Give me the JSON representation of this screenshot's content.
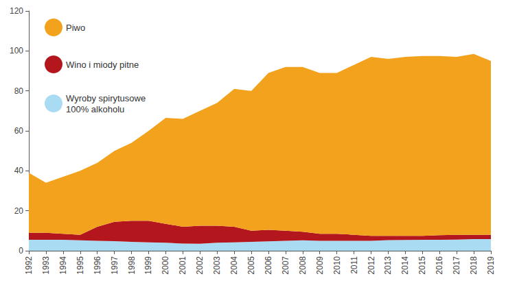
{
  "chart_data": {
    "type": "area",
    "stacked": true,
    "grid": false,
    "legend": "top-left",
    "categories": [
      "1992",
      "1993",
      "1994",
      "1995",
      "1996",
      "1997",
      "1998",
      "1999",
      "2000",
      "2001",
      "2002",
      "2003",
      "2004",
      "2005",
      "2006",
      "2007",
      "2008",
      "2009",
      "2010",
      "2011",
      "2012",
      "2013",
      "2014",
      "2015",
      "2016",
      "2017",
      "2018",
      "2019"
    ],
    "ylim": [
      0,
      120
    ],
    "yticks": [
      0,
      20,
      40,
      60,
      80,
      100,
      120
    ],
    "series": [
      {
        "name": "Piwo",
        "color": "#f2a21c",
        "values": [
          30,
          25,
          28.5,
          32,
          32,
          35.5,
          39,
          45,
          53,
          54,
          57.5,
          61.5,
          69,
          70,
          78.5,
          82,
          82.5,
          80.5,
          80.5,
          85,
          89.5,
          88.5,
          89.5,
          90,
          89.7,
          89,
          90.5,
          87
        ]
      },
      {
        "name": "Wino i miody pitne",
        "color": "#b3161c",
        "values": [
          3.5,
          3.5,
          3,
          2.8,
          7,
          9.7,
          10.5,
          10.8,
          9.5,
          8.4,
          9,
          8.5,
          7.8,
          5.5,
          5.8,
          5,
          4.3,
          3.5,
          3.5,
          3,
          2.5,
          2.2,
          2.1,
          2,
          2.3,
          2.4,
          2.2,
          2.2
        ]
      },
      {
        "name": "Wyroby spirytusowe\n100% alkoholu",
        "color": "#a9dcf2",
        "values": [
          5.5,
          5.5,
          5.5,
          5.2,
          5,
          4.8,
          4.5,
          4.2,
          4,
          3.6,
          3.5,
          4,
          4.2,
          4.5,
          4.7,
          5,
          5.2,
          5,
          5,
          5,
          5,
          5.3,
          5.4,
          5.5,
          5.5,
          5.6,
          5.8,
          5.8
        ]
      }
    ]
  }
}
